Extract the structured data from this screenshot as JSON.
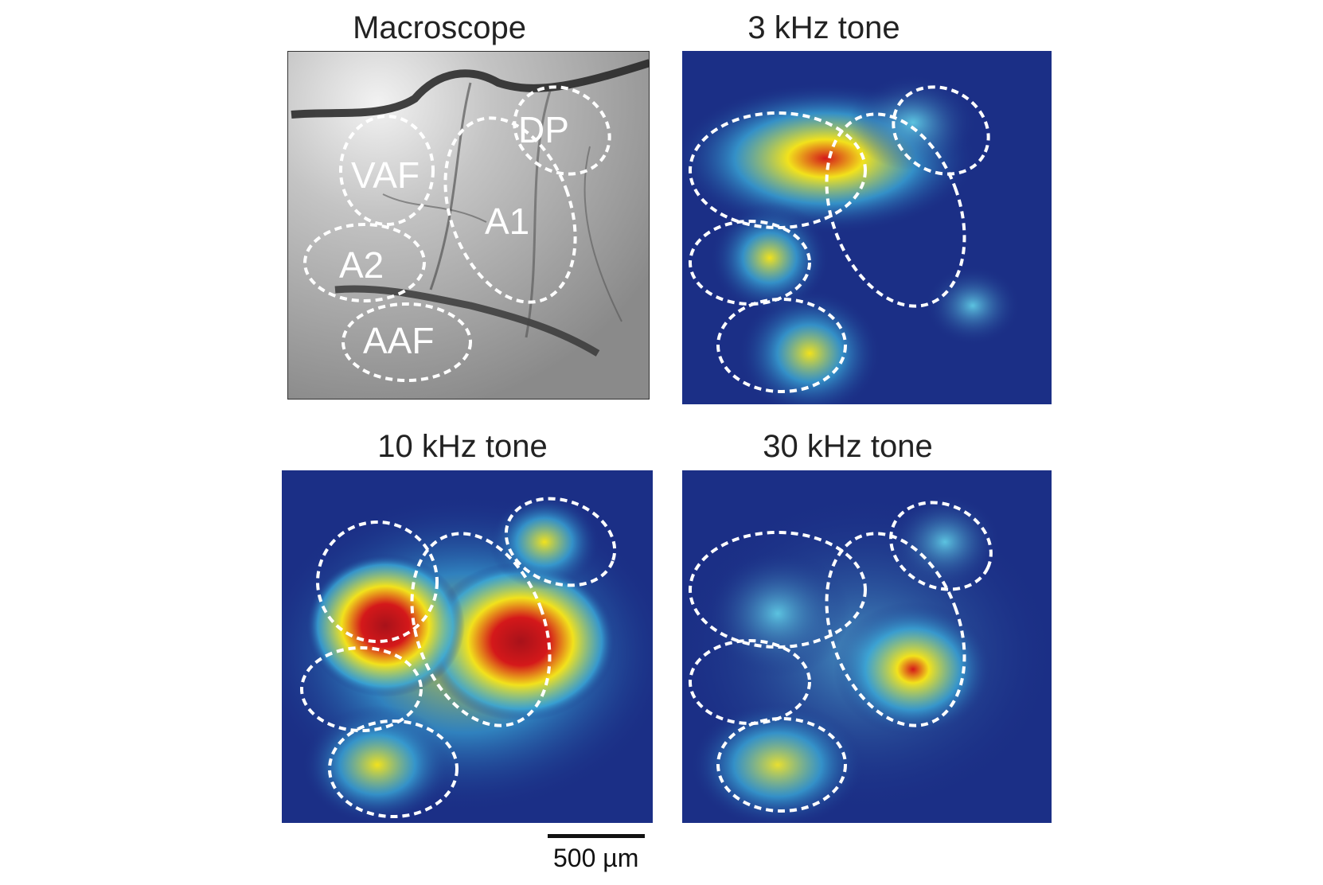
{
  "panels": [
    {
      "title": "Macroscope",
      "type": "photo"
    },
    {
      "title": "3 kHz tone",
      "type": "activation"
    },
    {
      "title": "10 kHz tone",
      "type": "activation"
    },
    {
      "title": "30 kHz tone",
      "type": "activation"
    }
  ],
  "regions": [
    "DP",
    "VAF",
    "A1",
    "A2",
    "AAF"
  ],
  "scale_bar": {
    "label": "500 µm"
  },
  "colors": {
    "background_blue": "#1b2f86",
    "low": "#3aa8d8",
    "mid": "#f2e21c",
    "high": "#d4181a",
    "outline": "#ffffff"
  }
}
